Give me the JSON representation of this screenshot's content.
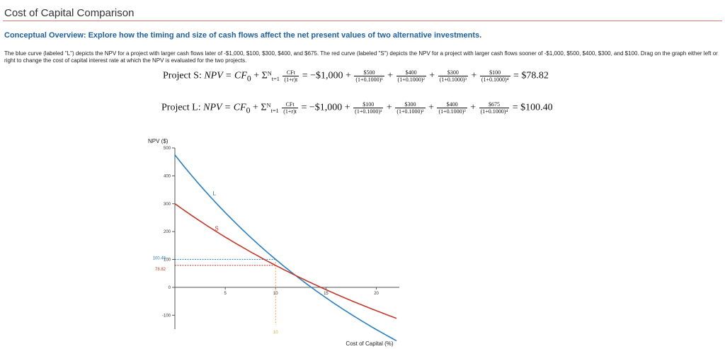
{
  "header": {
    "title": "Cost of Capital Comparison",
    "subtitle": "Conceptual Overview: Explore how the timing and size of cash flows affect the net present values of two alternative investments.",
    "description": "The blue curve (labeled \"L\") depicts the NPV for a project with larger cash flows later of -$1,000, $100, $300, $400, and $675. The red curve (labeled \"S\") depicts the NPV for a project with larger cash flows sooner of -$1,000, $500, $400, $300, and $100. Drag on the graph either left or right to change the cost of capital interest rate at which the NPV is evaluated for the two projects."
  },
  "equations": {
    "s": {
      "label": "Project S:",
      "lhs": "NPV = CF",
      "sub0": "0",
      "plus": " + ",
      "sigma": "Σ",
      "sum_top": "N",
      "sum_bottom": "t=1",
      "gen_num": "CFt",
      "gen_den": "(1+r)t",
      "eq": " = −$1,000 + ",
      "terms": [
        {
          "num": "$500",
          "den": "(1+0.1000)¹"
        },
        {
          "num": "$400",
          "den": "(1+0.1000)²"
        },
        {
          "num": "$300",
          "den": "(1+0.1000)³"
        },
        {
          "num": "$100",
          "den": "(1+0.1000)⁴"
        }
      ],
      "result": " = $78.82"
    },
    "l": {
      "label": "Project L:",
      "lhs": "NPV = CF",
      "sub0": "0",
      "plus": " + ",
      "sigma": "Σ",
      "sum_top": "N",
      "sum_bottom": "t=1",
      "gen_num": "CFt",
      "gen_den": "(1+r)t",
      "eq": " = −$1,000 + ",
      "terms": [
        {
          "num": "$100",
          "den": "(1+0.1000)¹"
        },
        {
          "num": "$300",
          "den": "(1+0.1000)²"
        },
        {
          "num": "$400",
          "den": "(1+0.1000)³"
        },
        {
          "num": "$675",
          "den": "(1+0.1000)⁴"
        }
      ],
      "result": " = $100.40"
    }
  },
  "chart_data": {
    "type": "line",
    "ylabel": "NPV ($)",
    "xlabel": "Cost of Capital (%)",
    "xlim": [
      0,
      22
    ],
    "ylim": [
      -150,
      500
    ],
    "yticks": [
      500,
      400,
      300,
      200,
      100,
      0,
      -100
    ],
    "xticks": [
      5,
      10,
      15,
      20
    ],
    "series": [
      {
        "name": "L",
        "color": "#2a7fc1",
        "cash_flows": [
          -1000,
          100,
          300,
          400,
          675
        ]
      },
      {
        "name": "S",
        "color": "#c0392b",
        "cash_flows": [
          -1000,
          500,
          400,
          300,
          100
        ]
      }
    ],
    "selected_rate": 10,
    "selected_rate_label": "10",
    "markers": [
      {
        "label": "100.40",
        "value": 100.4,
        "color": "#2a7fc1"
      },
      {
        "label": "78.82",
        "value": 78.82,
        "color": "#c0392b"
      }
    ],
    "marker_color": "#e8a33a"
  }
}
